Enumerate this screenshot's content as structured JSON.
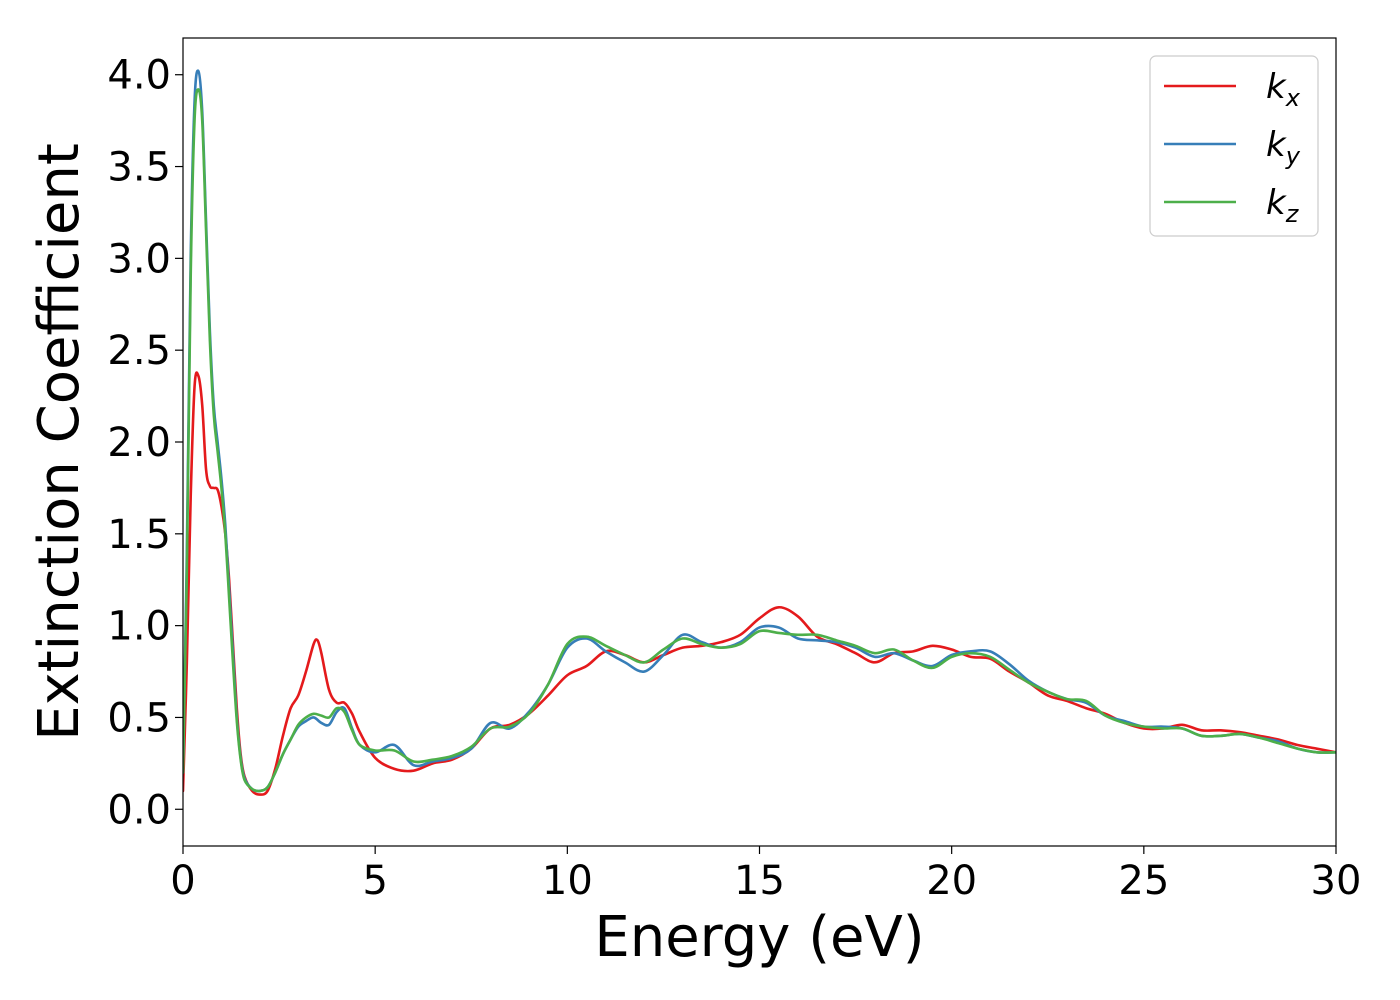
{
  "chart_data": {
    "type": "line",
    "title": "",
    "xlabel": "Energy (eV)",
    "ylabel": "Extinction Coefficient",
    "xlim": [
      0,
      30
    ],
    "ylim": [
      -0.2,
      4.2
    ],
    "xticks": [
      0,
      5,
      10,
      15,
      20,
      25,
      30
    ],
    "xtick_labels": [
      "0",
      "5",
      "10",
      "15",
      "20",
      "25",
      "30"
    ],
    "yticks": [
      0.0,
      0.5,
      1.0,
      1.5,
      2.0,
      2.5,
      3.0,
      3.5,
      4.0
    ],
    "ytick_labels": [
      "0.0",
      "0.5",
      "1.0",
      "1.5",
      "2.0",
      "2.5",
      "3.0",
      "3.5",
      "4.0"
    ],
    "grid": false,
    "legend_position": "top-right",
    "series": [
      {
        "name": "k",
        "subscript": "x",
        "color": "#e41a1c",
        "x": [
          0,
          0.1,
          0.2,
          0.3,
          0.4,
          0.5,
          0.6,
          0.7,
          0.8,
          0.9,
          1.0,
          1.1,
          1.2,
          1.3,
          1.4,
          1.5,
          1.6,
          1.8,
          2.0,
          2.2,
          2.4,
          2.6,
          2.8,
          3.0,
          3.2,
          3.4,
          3.5,
          3.6,
          3.8,
          4.0,
          4.2,
          4.4,
          4.6,
          5.0,
          5.5,
          6.0,
          6.5,
          7.0,
          7.5,
          8.0,
          8.5,
          9.0,
          9.5,
          10.0,
          10.5,
          11.0,
          11.5,
          12.0,
          12.5,
          13.0,
          13.5,
          14.0,
          14.5,
          15.0,
          15.5,
          16.0,
          16.5,
          17.0,
          17.5,
          18.0,
          18.5,
          19.0,
          19.5,
          20.0,
          20.5,
          21.0,
          21.5,
          22.0,
          22.5,
          23.0,
          23.5,
          24.0,
          24.5,
          25.0,
          25.5,
          26.0,
          26.5,
          27.0,
          27.5,
          28.0,
          28.5,
          29.0,
          29.5,
          30.0
        ],
        "y": [
          0.1,
          0.8,
          1.7,
          2.3,
          2.36,
          2.2,
          1.85,
          1.76,
          1.75,
          1.74,
          1.65,
          1.5,
          1.25,
          0.9,
          0.55,
          0.3,
          0.18,
          0.1,
          0.08,
          0.1,
          0.22,
          0.4,
          0.55,
          0.62,
          0.75,
          0.9,
          0.92,
          0.85,
          0.65,
          0.58,
          0.58,
          0.52,
          0.42,
          0.28,
          0.22,
          0.21,
          0.25,
          0.27,
          0.33,
          0.44,
          0.46,
          0.52,
          0.62,
          0.73,
          0.78,
          0.86,
          0.84,
          0.8,
          0.84,
          0.88,
          0.89,
          0.91,
          0.95,
          1.04,
          1.1,
          1.05,
          0.94,
          0.9,
          0.85,
          0.8,
          0.85,
          0.86,
          0.89,
          0.87,
          0.83,
          0.82,
          0.75,
          0.69,
          0.62,
          0.59,
          0.55,
          0.52,
          0.47,
          0.44,
          0.44,
          0.46,
          0.43,
          0.43,
          0.42,
          0.4,
          0.38,
          0.35,
          0.33,
          0.31
        ]
      },
      {
        "name": "k",
        "subscript": "y",
        "color": "#377eb8",
        "x": [
          0,
          0.1,
          0.2,
          0.3,
          0.4,
          0.5,
          0.6,
          0.7,
          0.8,
          0.9,
          1.0,
          1.1,
          1.2,
          1.3,
          1.4,
          1.5,
          1.6,
          1.8,
          2.0,
          2.2,
          2.4,
          2.6,
          2.8,
          3.0,
          3.2,
          3.4,
          3.6,
          3.8,
          4.0,
          4.2,
          4.4,
          4.6,
          5.0,
          5.5,
          6.0,
          6.5,
          7.0,
          7.5,
          8.0,
          8.5,
          9.0,
          9.5,
          10.0,
          10.5,
          11.0,
          11.5,
          12.0,
          12.5,
          13.0,
          13.5,
          14.0,
          14.5,
          15.0,
          15.5,
          16.0,
          16.5,
          17.0,
          17.5,
          18.0,
          18.5,
          19.0,
          19.5,
          20.0,
          20.5,
          21.0,
          21.5,
          22.0,
          22.5,
          23.0,
          23.5,
          24.0,
          24.5,
          25.0,
          25.5,
          26.0,
          26.5,
          27.0,
          27.5,
          28.0,
          28.5,
          29.0,
          29.5,
          30.0
        ],
        "y": [
          0.2,
          1.4,
          3.0,
          3.85,
          4.02,
          3.8,
          3.2,
          2.6,
          2.2,
          2.0,
          1.8,
          1.55,
          1.2,
          0.85,
          0.5,
          0.28,
          0.17,
          0.11,
          0.1,
          0.12,
          0.2,
          0.3,
          0.38,
          0.45,
          0.48,
          0.5,
          0.47,
          0.46,
          0.53,
          0.55,
          0.44,
          0.35,
          0.31,
          0.35,
          0.24,
          0.26,
          0.28,
          0.33,
          0.47,
          0.44,
          0.53,
          0.68,
          0.88,
          0.93,
          0.86,
          0.8,
          0.75,
          0.84,
          0.95,
          0.91,
          0.88,
          0.91,
          0.99,
          0.99,
          0.93,
          0.92,
          0.91,
          0.88,
          0.83,
          0.85,
          0.81,
          0.78,
          0.84,
          0.86,
          0.86,
          0.79,
          0.7,
          0.64,
          0.6,
          0.58,
          0.51,
          0.48,
          0.45,
          0.45,
          0.44,
          0.4,
          0.4,
          0.41,
          0.39,
          0.37,
          0.33,
          0.31,
          0.31
        ]
      },
      {
        "name": "k",
        "subscript": "z",
        "color": "#4daf4a",
        "x": [
          0,
          0.1,
          0.2,
          0.3,
          0.4,
          0.5,
          0.6,
          0.7,
          0.8,
          0.9,
          1.0,
          1.1,
          1.2,
          1.3,
          1.4,
          1.5,
          1.6,
          1.8,
          2.0,
          2.2,
          2.4,
          2.6,
          2.8,
          3.0,
          3.2,
          3.4,
          3.6,
          3.8,
          4.0,
          4.2,
          4.4,
          4.6,
          5.0,
          5.5,
          6.0,
          6.5,
          7.0,
          7.5,
          8.0,
          8.5,
          9.0,
          9.5,
          10.0,
          10.5,
          11.0,
          11.5,
          12.0,
          12.5,
          13.0,
          13.5,
          14.0,
          14.5,
          15.0,
          15.5,
          16.0,
          16.5,
          17.0,
          17.5,
          18.0,
          18.5,
          19.0,
          19.5,
          20.0,
          20.5,
          21.0,
          21.5,
          22.0,
          22.5,
          23.0,
          23.5,
          24.0,
          24.5,
          25.0,
          25.5,
          26.0,
          26.5,
          27.0,
          27.5,
          28.0,
          28.5,
          29.0,
          29.5,
          30.0
        ],
        "y": [
          0.2,
          1.3,
          2.9,
          3.75,
          3.92,
          3.75,
          3.15,
          2.55,
          2.15,
          1.95,
          1.75,
          1.5,
          1.15,
          0.8,
          0.48,
          0.27,
          0.16,
          0.11,
          0.1,
          0.12,
          0.2,
          0.3,
          0.38,
          0.46,
          0.5,
          0.52,
          0.51,
          0.5,
          0.55,
          0.53,
          0.43,
          0.35,
          0.32,
          0.32,
          0.26,
          0.27,
          0.29,
          0.34,
          0.44,
          0.45,
          0.52,
          0.68,
          0.9,
          0.94,
          0.89,
          0.84,
          0.8,
          0.87,
          0.93,
          0.9,
          0.88,
          0.9,
          0.97,
          0.96,
          0.95,
          0.95,
          0.92,
          0.89,
          0.85,
          0.87,
          0.81,
          0.77,
          0.83,
          0.85,
          0.83,
          0.76,
          0.69,
          0.64,
          0.6,
          0.59,
          0.51,
          0.47,
          0.45,
          0.44,
          0.44,
          0.4,
          0.4,
          0.41,
          0.39,
          0.36,
          0.33,
          0.31,
          0.31
        ]
      }
    ]
  }
}
